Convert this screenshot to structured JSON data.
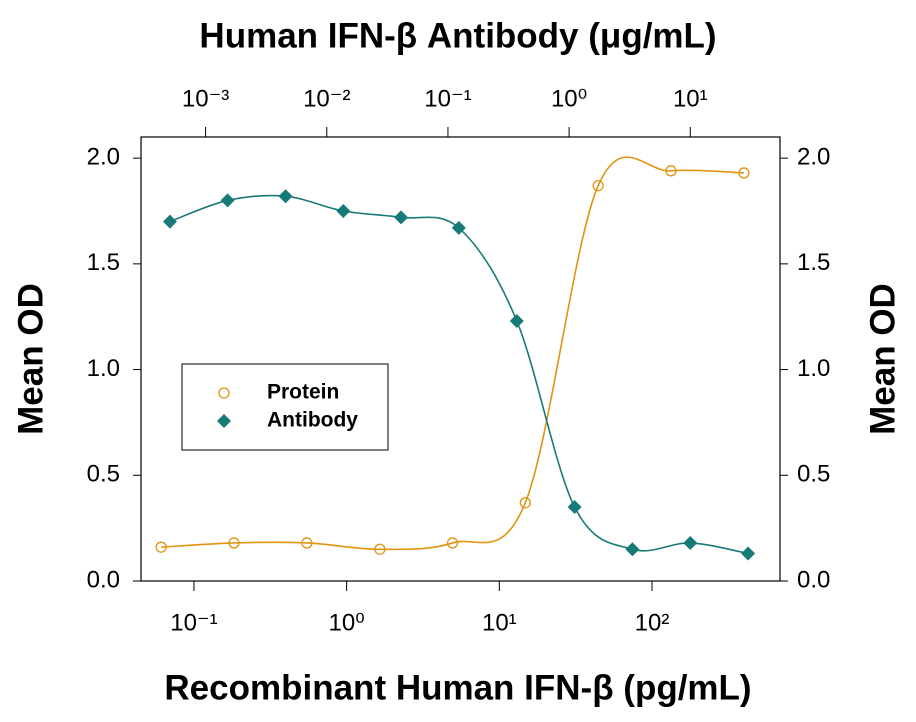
{
  "chart_data": {
    "type": "scatter",
    "title": "Human IFN-β Antibody (μg/mL)",
    "xlabel": "Recombinant Human IFN-β (pg/mL)",
    "ylabel": "Mean OD",
    "y2label": "Mean OD",
    "xscale": "log",
    "x2scale": "log",
    "xlim": [
      0.045,
      689
    ],
    "xticks": [
      {
        "value": 0.1,
        "label": "10⁻¹"
      },
      {
        "value": 1,
        "label": "10⁰"
      },
      {
        "value": 10,
        "label": "10¹"
      },
      {
        "value": 100,
        "label": "10²"
      }
    ],
    "x2lim": [
      0.000293,
      55
    ],
    "x2ticks": [
      {
        "value": 0.001,
        "label": "10⁻³"
      },
      {
        "value": 0.01,
        "label": "10⁻²"
      },
      {
        "value": 0.1,
        "label": "10⁻¹"
      },
      {
        "value": 1,
        "label": "10⁰"
      },
      {
        "value": 10,
        "label": "10¹"
      }
    ],
    "ylim": [
      0,
      2.1
    ],
    "yticks": [
      {
        "value": 0,
        "label": "0.0"
      },
      {
        "value": 0.5,
        "label": "0.5"
      },
      {
        "value": 1,
        "label": "1.0"
      },
      {
        "value": 1.5,
        "label": "1.5"
      },
      {
        "value": 2,
        "label": "2.0"
      }
    ],
    "y2lim": [
      0,
      2.1
    ],
    "y2ticks": [
      {
        "value": 0,
        "label": "0.0"
      },
      {
        "value": 0.5,
        "label": "0.5"
      },
      {
        "value": 1,
        "label": "1.0"
      },
      {
        "value": 1.5,
        "label": "1.5"
      },
      {
        "value": 2,
        "label": "2.0"
      }
    ],
    "legend": "center left",
    "series": [
      {
        "name": "Protein",
        "color": "#e0940f",
        "marker": "open-circle",
        "x": [
          0.061,
          0.183,
          0.549,
          1.65,
          4.94,
          14.8,
          44.4,
          133,
          400
        ],
        "values": [
          0.16,
          0.18,
          0.18,
          0.15,
          0.18,
          0.37,
          1.87,
          1.94,
          1.93
        ]
      },
      {
        "name": "Antibody",
        "color": "#177a78",
        "marker": "diamond",
        "axis": "x2",
        "x": [
          0.000508,
          0.00152,
          0.00457,
          0.0137,
          0.041,
          0.123,
          0.37,
          1.11,
          3.33,
          10,
          30
        ],
        "values": [
          1.7,
          1.8,
          1.82,
          1.75,
          1.72,
          1.67,
          1.23,
          0.35,
          0.15,
          0.18,
          0.13
        ]
      }
    ]
  }
}
